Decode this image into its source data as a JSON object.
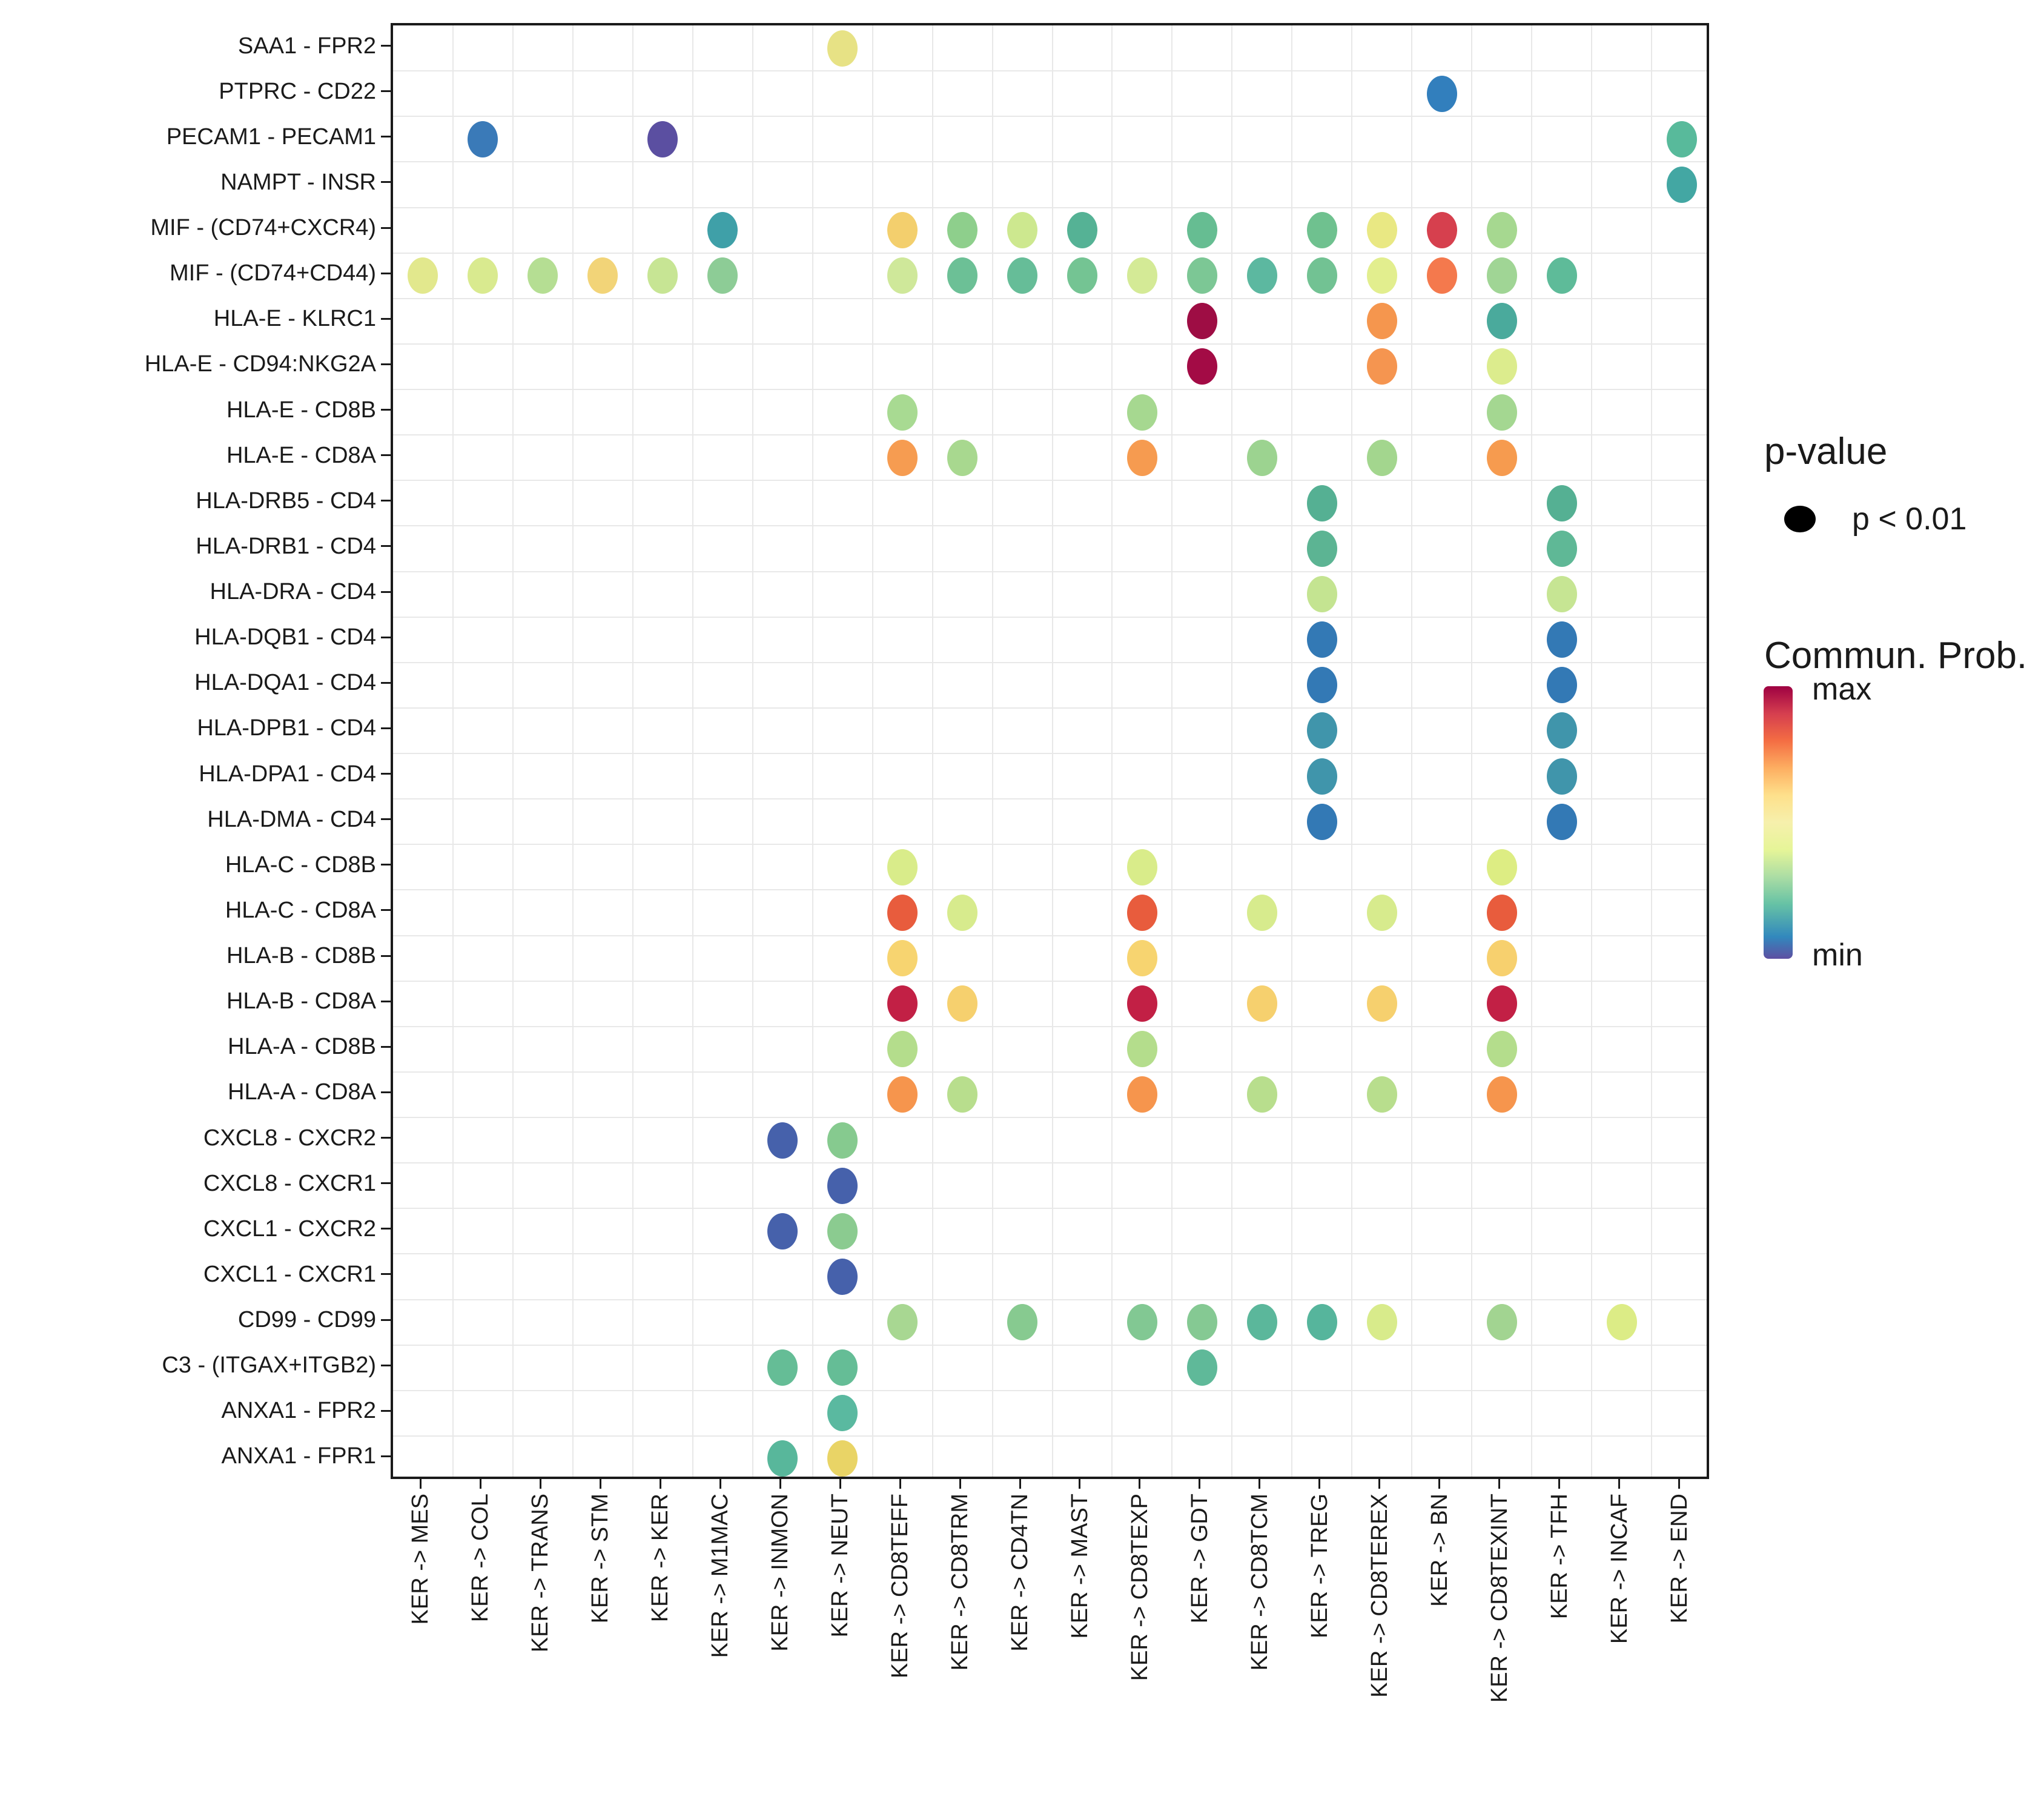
{
  "chart_data": {
    "type": "scatter",
    "subtype": "dot-plot-ligand-receptor",
    "title": "",
    "xlabel": "",
    "ylabel": "",
    "grid": true,
    "x_categories": [
      "KER -> MES",
      "KER -> COL",
      "KER -> TRANS",
      "KER -> STM",
      "KER -> KER",
      "KER -> M1MAC",
      "KER -> INMON",
      "KER -> NEUT",
      "KER -> CD8TEFF",
      "KER -> CD8TRM",
      "KER -> CD4TN",
      "KER -> MAST",
      "KER -> CD8TEXP",
      "KER -> GDT",
      "KER -> CD8TCM",
      "KER -> TREG",
      "KER -> CD8TEREX",
      "KER -> BN",
      "KER -> CD8TEXINT",
      "KER -> TFH",
      "KER -> INCAF",
      "KER -> END"
    ],
    "y_categories": [
      "SAA1 - FPR2",
      "PTPRC - CD22",
      "PECAM1 - PECAM1",
      "NAMPT - INSR",
      "MIF - (CD74+CXCR4)",
      "MIF - (CD74+CD44)",
      "HLA-E - KLRC1",
      "HLA-E - CD94:NKG2A",
      "HLA-E - CD8B",
      "HLA-E - CD8A",
      "HLA-DRB5 - CD4",
      "HLA-DRB1 - CD4",
      "HLA-DRA - CD4",
      "HLA-DQB1 - CD4",
      "HLA-DQA1 - CD4",
      "HLA-DPB1 - CD4",
      "HLA-DPA1 - CD4",
      "HLA-DMA - CD4",
      "HLA-C - CD8B",
      "HLA-C - CD8A",
      "HLA-B - CD8B",
      "HLA-B - CD8A",
      "HLA-A - CD8B",
      "HLA-A - CD8A",
      "CXCL8 - CXCR2",
      "CXCL8 - CXCR1",
      "CXCL1 - CXCR2",
      "CXCL1 - CXCR1",
      "CD99 - CD99",
      "C3 - (ITGAX+ITGB2)",
      "ANXA1 - FPR2",
      "ANXA1 - FPR1"
    ],
    "points_format": [
      "y_index",
      "x_index",
      "color"
    ],
    "points": [
      [
        0,
        7,
        "#e7e285"
      ],
      [
        1,
        17,
        "#327fbd"
      ],
      [
        2,
        1,
        "#3a7ab8"
      ],
      [
        2,
        4,
        "#5b4fa1"
      ],
      [
        2,
        21,
        "#58ba9b"
      ],
      [
        3,
        21,
        "#43a7a3"
      ],
      [
        4,
        5,
        "#3fa0a8"
      ],
      [
        4,
        8,
        "#f3cf6d"
      ],
      [
        4,
        9,
        "#8ecf8c"
      ],
      [
        4,
        10,
        "#cde88f"
      ],
      [
        4,
        11,
        "#55b295"
      ],
      [
        4,
        13,
        "#66bd92"
      ],
      [
        4,
        15,
        "#6fc18f"
      ],
      [
        4,
        16,
        "#e9e883"
      ],
      [
        4,
        17,
        "#d6404e"
      ],
      [
        4,
        18,
        "#a6d890"
      ],
      [
        5,
        0,
        "#e2e88d"
      ],
      [
        5,
        1,
        "#d9ea8f"
      ],
      [
        5,
        2,
        "#b5de93"
      ],
      [
        5,
        3,
        "#f2d478"
      ],
      [
        5,
        4,
        "#c7e594"
      ],
      [
        5,
        5,
        "#8dcc96"
      ],
      [
        5,
        8,
        "#cfe89a"
      ],
      [
        5,
        9,
        "#6cc096"
      ],
      [
        5,
        10,
        "#66bd98"
      ],
      [
        5,
        11,
        "#74c493"
      ],
      [
        5,
        12,
        "#d4ea96"
      ],
      [
        5,
        13,
        "#7cc795"
      ],
      [
        5,
        14,
        "#5cb8a0"
      ],
      [
        5,
        15,
        "#72c293"
      ],
      [
        5,
        16,
        "#e2ee8e"
      ],
      [
        5,
        17,
        "#f4794d"
      ],
      [
        5,
        18,
        "#a0d595"
      ],
      [
        5,
        19,
        "#5ebb99"
      ],
      [
        6,
        13,
        "#9e0d44"
      ],
      [
        6,
        16,
        "#f5964e"
      ],
      [
        6,
        18,
        "#4aaa9c"
      ],
      [
        7,
        13,
        "#a30b45"
      ],
      [
        7,
        16,
        "#f59550"
      ],
      [
        7,
        18,
        "#dcec8d"
      ],
      [
        8,
        8,
        "#a8da92"
      ],
      [
        8,
        12,
        "#a6d890"
      ],
      [
        8,
        18,
        "#a4d791"
      ],
      [
        9,
        8,
        "#f69c51"
      ],
      [
        9,
        9,
        "#a8d88f"
      ],
      [
        9,
        12,
        "#f69b50"
      ],
      [
        9,
        14,
        "#9cd390"
      ],
      [
        9,
        16,
        "#a3d68e"
      ],
      [
        9,
        18,
        "#f69b4f"
      ],
      [
        10,
        15,
        "#55b093"
      ],
      [
        10,
        19,
        "#55b093"
      ],
      [
        11,
        15,
        "#5cb493"
      ],
      [
        11,
        19,
        "#5fb896"
      ],
      [
        12,
        15,
        "#c4e491"
      ],
      [
        12,
        19,
        "#c6e593"
      ],
      [
        13,
        15,
        "#3379b5"
      ],
      [
        13,
        19,
        "#3379b5"
      ],
      [
        14,
        15,
        "#3379b5"
      ],
      [
        14,
        19,
        "#3379b5"
      ],
      [
        15,
        15,
        "#4095ab"
      ],
      [
        15,
        19,
        "#4095ab"
      ],
      [
        16,
        15,
        "#4095ab"
      ],
      [
        16,
        19,
        "#4095ab"
      ],
      [
        17,
        15,
        "#3379b5"
      ],
      [
        17,
        19,
        "#3379b5"
      ],
      [
        18,
        8,
        "#d9ec8a"
      ],
      [
        18,
        12,
        "#d9ec8a"
      ],
      [
        18,
        18,
        "#dded83"
      ],
      [
        19,
        8,
        "#e85c3d"
      ],
      [
        19,
        9,
        "#d7eb8d"
      ],
      [
        19,
        12,
        "#e85c3d"
      ],
      [
        19,
        14,
        "#d7eb8d"
      ],
      [
        19,
        16,
        "#d7eb8d"
      ],
      [
        19,
        18,
        "#e85c3d"
      ],
      [
        20,
        8,
        "#f7d470"
      ],
      [
        20,
        12,
        "#f7d470"
      ],
      [
        20,
        18,
        "#f7d06e"
      ],
      [
        21,
        8,
        "#c22045"
      ],
      [
        21,
        9,
        "#f6d06e"
      ],
      [
        21,
        12,
        "#c22045"
      ],
      [
        21,
        14,
        "#f6d06e"
      ],
      [
        21,
        16,
        "#f6d06e"
      ],
      [
        21,
        18,
        "#c22045"
      ],
      [
        22,
        8,
        "#b4dd8c"
      ],
      [
        22,
        12,
        "#b4dd8c"
      ],
      [
        22,
        18,
        "#b4dd8c"
      ],
      [
        23,
        8,
        "#f6954d"
      ],
      [
        23,
        9,
        "#b8de8d"
      ],
      [
        23,
        12,
        "#f6954d"
      ],
      [
        23,
        14,
        "#b8de8d"
      ],
      [
        23,
        16,
        "#b8de8d"
      ],
      [
        23,
        18,
        "#f6954d"
      ],
      [
        24,
        6,
        "#4661ab"
      ],
      [
        24,
        7,
        "#86ca8f"
      ],
      [
        25,
        7,
        "#4661ab"
      ],
      [
        26,
        6,
        "#4661ab"
      ],
      [
        26,
        7,
        "#8bcb90"
      ],
      [
        27,
        7,
        "#4661ab"
      ],
      [
        28,
        8,
        "#a8d792"
      ],
      [
        28,
        10,
        "#87ca90"
      ],
      [
        28,
        12,
        "#82c893"
      ],
      [
        28,
        13,
        "#85c993"
      ],
      [
        28,
        14,
        "#5bb79b"
      ],
      [
        28,
        15,
        "#56b59c"
      ],
      [
        28,
        16,
        "#d8eb8b"
      ],
      [
        28,
        18,
        "#a2d491"
      ],
      [
        28,
        20,
        "#dcec86"
      ],
      [
        29,
        6,
        "#65bd96"
      ],
      [
        29,
        7,
        "#65bd96"
      ],
      [
        29,
        13,
        "#5fb999"
      ],
      [
        30,
        7,
        "#5ab9a0"
      ],
      [
        31,
        6,
        "#58b79b"
      ],
      [
        31,
        7,
        "#e9d466"
      ]
    ],
    "legend": {
      "position": "right",
      "colorbar_orientation": "vertical",
      "colorbar_top_color": "#9e0142",
      "colorbar_bottom_color": "#5e4fa2",
      "colorbar_colors": [
        "#9e0142",
        "#d53e4f",
        "#f46d43",
        "#fdae61",
        "#fee08b",
        "#f6f0ac",
        "#e6f598",
        "#abdda4",
        "#66c2a5",
        "#3288bd",
        "#5e4fa2"
      ]
    }
  },
  "legend": {
    "pvalue_title": "p-value",
    "pvalue_item": "p < 0.01",
    "pvalue_dot_color": "#000000",
    "colorbar_title": "Commun. Prob.",
    "max_label": "max",
    "min_label": "min"
  }
}
